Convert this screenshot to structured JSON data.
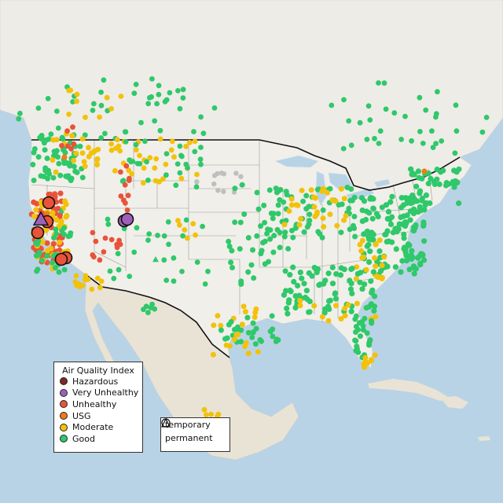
{
  "map": {
    "subject": "Air Quality Index monitors across the United States",
    "colors": {
      "ocean": "#b9d3e6",
      "land": "#f1efea",
      "mexico_land": "#e9e3d6",
      "canada_land": "#eeece6",
      "state_line": "#9a9a9a",
      "border_line": "#111111",
      "no_data": "#bfbfbf"
    }
  },
  "aqi_legend": {
    "title": "Air Quality Index",
    "items": [
      {
        "label": "Hazardous",
        "color": "#7e2a26"
      },
      {
        "label": "Very Unhealthy",
        "color": "#9f5fb8"
      },
      {
        "label": "Unhealthy",
        "color": "#e8533a"
      },
      {
        "label": "USG",
        "color": "#f07b16"
      },
      {
        "label": "Moderate",
        "color": "#f2c20b"
      },
      {
        "label": "Good",
        "color": "#2fc86a"
      }
    ]
  },
  "type_legend": {
    "items": [
      {
        "label": "temporary",
        "icon": "circle-icon"
      },
      {
        "label": "permanent",
        "icon": "triangle-icon"
      }
    ]
  }
}
